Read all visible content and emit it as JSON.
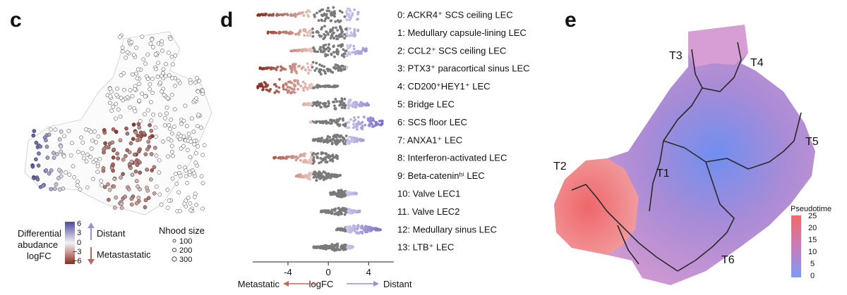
{
  "panels": {
    "c": "c",
    "d": "d",
    "e": "e"
  },
  "panel_c": {
    "legend_title_lines": [
      "Differential",
      "abudance",
      "logFC"
    ],
    "colorbar_ticks": [
      "6",
      "3",
      "0",
      "−3",
      "−6"
    ],
    "distant_label": "Distant",
    "metastatic_label": "Metastastatic",
    "nhood_title": "Nhood size",
    "nhood_sizes": [
      "100",
      "200",
      "300"
    ],
    "colors": {
      "high": "#4b4a9a",
      "mid": "#f4f0f5",
      "low": "#8c2a1c"
    }
  },
  "chart_data": {
    "type": "beeswarm",
    "title": "",
    "xlabel": "logFC",
    "x_ticks": [
      -4,
      0,
      4
    ],
    "xlim": [
      -7.5,
      6.5
    ],
    "left_arrow_label": "Metastatic",
    "right_arrow_label": "Distant",
    "categories": [
      {
        "label": "0: ACKR4⁺ SCS ceiling LEC",
        "spread": [
          -7.0,
          3.0
        ],
        "median": 0.5,
        "width": 1.0
      },
      {
        "label": "1: Medullary capsule-lining LEC",
        "spread": [
          -6.0,
          3.0
        ],
        "median": 0.2,
        "width": 0.9
      },
      {
        "label": "2: CCL2⁺ SCS ceiling LEC",
        "spread": [
          -3.8,
          3.8
        ],
        "median": 0.9,
        "width": 0.9
      },
      {
        "label": "3: PTX3⁺ paracortical sinus LEC",
        "spread": [
          -6.8,
          2.0
        ],
        "median": -1.5,
        "width": 0.85
      },
      {
        "label": "4: CD200⁺HEY1⁺ LEC",
        "spread": [
          -7.0,
          1.0
        ],
        "median": -4.5,
        "width": 1.0
      },
      {
        "label": "5: Bridge LEC",
        "spread": [
          -2.5,
          4.0
        ],
        "median": 1.0,
        "width": 0.75
      },
      {
        "label": "6: SCS floor LEC",
        "spread": [
          -1.8,
          5.5
        ],
        "median": 3.0,
        "width": 0.95
      },
      {
        "label": "7: ANXA1⁺ LEC",
        "spread": [
          -1.5,
          3.5
        ],
        "median": 1.0,
        "width": 0.7
      },
      {
        "label": "8: Interferon-activated LEC",
        "spread": [
          -5.5,
          1.0
        ],
        "median": -1.2,
        "width": 0.8
      },
      {
        "label": "9: Beta-cateninʰⁱ LEC",
        "spread": [
          -3.2,
          1.2
        ],
        "median": -1.0,
        "width": 0.65
      },
      {
        "label": "10: Valve LEC1",
        "spread": [
          0.2,
          2.8
        ],
        "median": 1.2,
        "width": 0.45
      },
      {
        "label": "11. Valve LEC2",
        "spread": [
          -0.8,
          3.2
        ],
        "median": 1.2,
        "width": 0.45
      },
      {
        "label": "12: Medullary sinus LEC",
        "spread": [
          0.8,
          5.2
        ],
        "median": 3.0,
        "width": 0.55
      },
      {
        "label": "13: LTB⁺ LEC",
        "spread": [
          -1.5,
          2.5
        ],
        "median": 0.8,
        "width": 0.45
      }
    ],
    "colors": {
      "distant": "#7b6fc4",
      "neutral": "#7a7a7a",
      "metastatic": "#8c2a1c"
    }
  },
  "panel_e": {
    "trajectory_labels": [
      "T1",
      "T2",
      "T3",
      "T4",
      "T5",
      "T6"
    ],
    "legend_title": "Pseudotime",
    "legend_ticks": [
      "25",
      "20",
      "15",
      "10",
      "5",
      "0"
    ],
    "colors": {
      "high": "#f06a6a",
      "mid": "#c87bb8",
      "low": "#7b9df5"
    }
  }
}
